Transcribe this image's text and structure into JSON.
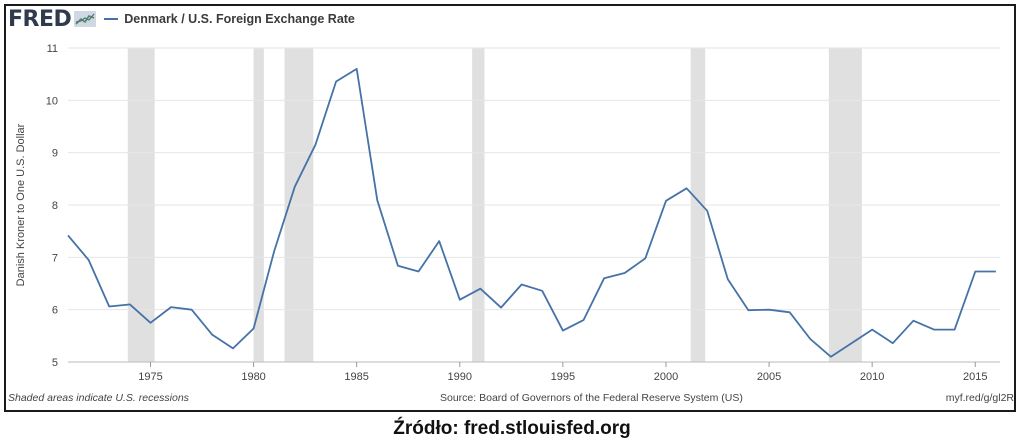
{
  "header": {
    "logo_text": "FRED",
    "logo_icon": "fred-chart-mark-icon"
  },
  "chart_data": {
    "type": "line",
    "title": "Denmark / U.S. Foreign Exchange Rate",
    "ylabel": "Danish Kroner to One U.S. Dollar",
    "xlabel": "",
    "xlim": [
      1971,
      2016.2
    ],
    "ylim": [
      5,
      11
    ],
    "yticks": [
      5,
      6,
      7,
      8,
      9,
      10,
      11
    ],
    "xticks": [
      1975,
      1980,
      1985,
      1990,
      1995,
      2000,
      2005,
      2010,
      2015
    ],
    "grid": true,
    "line_color": "#4572a7",
    "recession_color": "#e0e0e0",
    "recessions": [
      [
        1973.9,
        1975.2
      ],
      [
        1980.0,
        1980.5
      ],
      [
        1981.5,
        1982.9
      ],
      [
        1990.6,
        1991.2
      ],
      [
        2001.2,
        2001.9
      ],
      [
        2007.9,
        2009.5
      ]
    ],
    "series": [
      {
        "name": "Denmark / U.S. Foreign Exchange Rate",
        "x": [
          1971,
          1972,
          1973,
          1974,
          1975,
          1976,
          1977,
          1978,
          1979,
          1980,
          1981,
          1982,
          1983,
          1984,
          1985,
          1986,
          1987,
          1988,
          1989,
          1990,
          1991,
          1992,
          1993,
          1994,
          1995,
          1996,
          1997,
          1998,
          1999,
          2000,
          2001,
          2002,
          2003,
          2004,
          2005,
          2006,
          2007,
          2008,
          2009,
          2010,
          2011,
          2012,
          2013,
          2014,
          2015,
          2016
        ],
        "values": [
          7.42,
          6.95,
          6.06,
          6.1,
          5.75,
          6.05,
          6.0,
          5.52,
          5.26,
          5.64,
          7.12,
          8.35,
          9.15,
          10.36,
          10.6,
          8.09,
          6.84,
          6.73,
          7.31,
          6.19,
          6.4,
          6.04,
          6.48,
          6.36,
          5.6,
          5.8,
          6.6,
          6.7,
          6.98,
          8.08,
          8.32,
          7.89,
          6.58,
          5.99,
          6.0,
          5.95,
          5.44,
          5.1,
          5.36,
          5.62,
          5.36,
          5.79,
          5.62,
          5.62,
          6.73,
          6.73
        ]
      }
    ]
  },
  "footer": {
    "recession_note": "Shaded areas indicate U.S. recessions",
    "source": "Source: Board of Governors of the Federal Reserve System (US)",
    "url": "myf.red/g/gl2R"
  },
  "caption": "Źródło: fred.stlouisfed.org"
}
